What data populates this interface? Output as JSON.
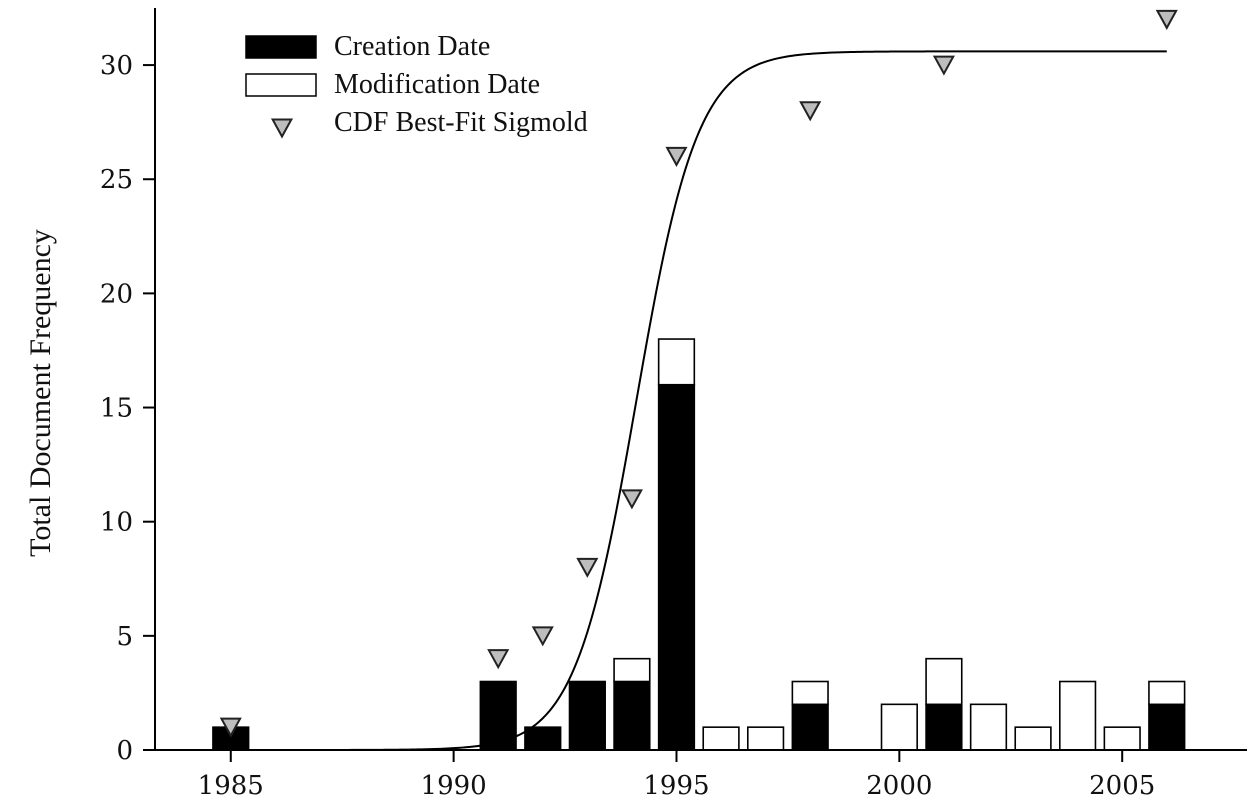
{
  "chart_data": {
    "type": "bar",
    "title": "",
    "xlabel": "",
    "ylabel": "Total Document Frequency",
    "xlim": [
      1983.3,
      2007.8
    ],
    "ylim": [
      0,
      32.5
    ],
    "x_ticks": [
      1985,
      1990,
      1995,
      2000,
      2005
    ],
    "y_ticks": [
      0,
      5,
      10,
      15,
      20,
      25,
      30
    ],
    "grid": false,
    "legend_position": "top-left",
    "colors": {
      "creation": "#000000",
      "modification": "#ffffff",
      "marker": "#bdbdbd",
      "curve": "#000000",
      "axis": "#000000"
    },
    "series": [
      {
        "name": "Creation Date",
        "kind": "bar-stacked",
        "points": [
          {
            "x": 1985,
            "y": 1
          },
          {
            "x": 1991,
            "y": 3
          },
          {
            "x": 1992,
            "y": 1
          },
          {
            "x": 1993,
            "y": 3
          },
          {
            "x": 1994,
            "y": 3
          },
          {
            "x": 1995,
            "y": 16
          },
          {
            "x": 1998,
            "y": 2
          },
          {
            "x": 2001,
            "y": 2
          },
          {
            "x": 2006,
            "y": 2
          }
        ]
      },
      {
        "name": "Modification Date",
        "kind": "bar-stacked",
        "points": [
          {
            "x": 1994,
            "y": 1
          },
          {
            "x": 1995,
            "y": 2
          },
          {
            "x": 1996,
            "y": 1
          },
          {
            "x": 1997,
            "y": 1
          },
          {
            "x": 1998,
            "y": 1
          },
          {
            "x": 2000,
            "y": 2
          },
          {
            "x": 2001,
            "y": 2
          },
          {
            "x": 2002,
            "y": 2
          },
          {
            "x": 2003,
            "y": 1
          },
          {
            "x": 2004,
            "y": 3
          },
          {
            "x": 2005,
            "y": 1
          },
          {
            "x": 2006,
            "y": 1
          }
        ]
      },
      {
        "name": "CDF Best-Fit Sigmold",
        "kind": "scatter-triangle",
        "points": [
          {
            "x": 1985,
            "y": 1
          },
          {
            "x": 1991,
            "y": 4
          },
          {
            "x": 1992,
            "y": 5
          },
          {
            "x": 1993,
            "y": 8
          },
          {
            "x": 1994,
            "y": 11
          },
          {
            "x": 1995,
            "y": 26
          },
          {
            "x": 1998,
            "y": 28
          },
          {
            "x": 2001,
            "y": 30
          },
          {
            "x": 2006,
            "y": 32
          }
        ]
      }
    ],
    "sigmoid_curve": {
      "x_start": 1986,
      "x_end": 2006,
      "upper": 30.6,
      "midpoint": 1994.1,
      "rate": 1.45
    }
  }
}
